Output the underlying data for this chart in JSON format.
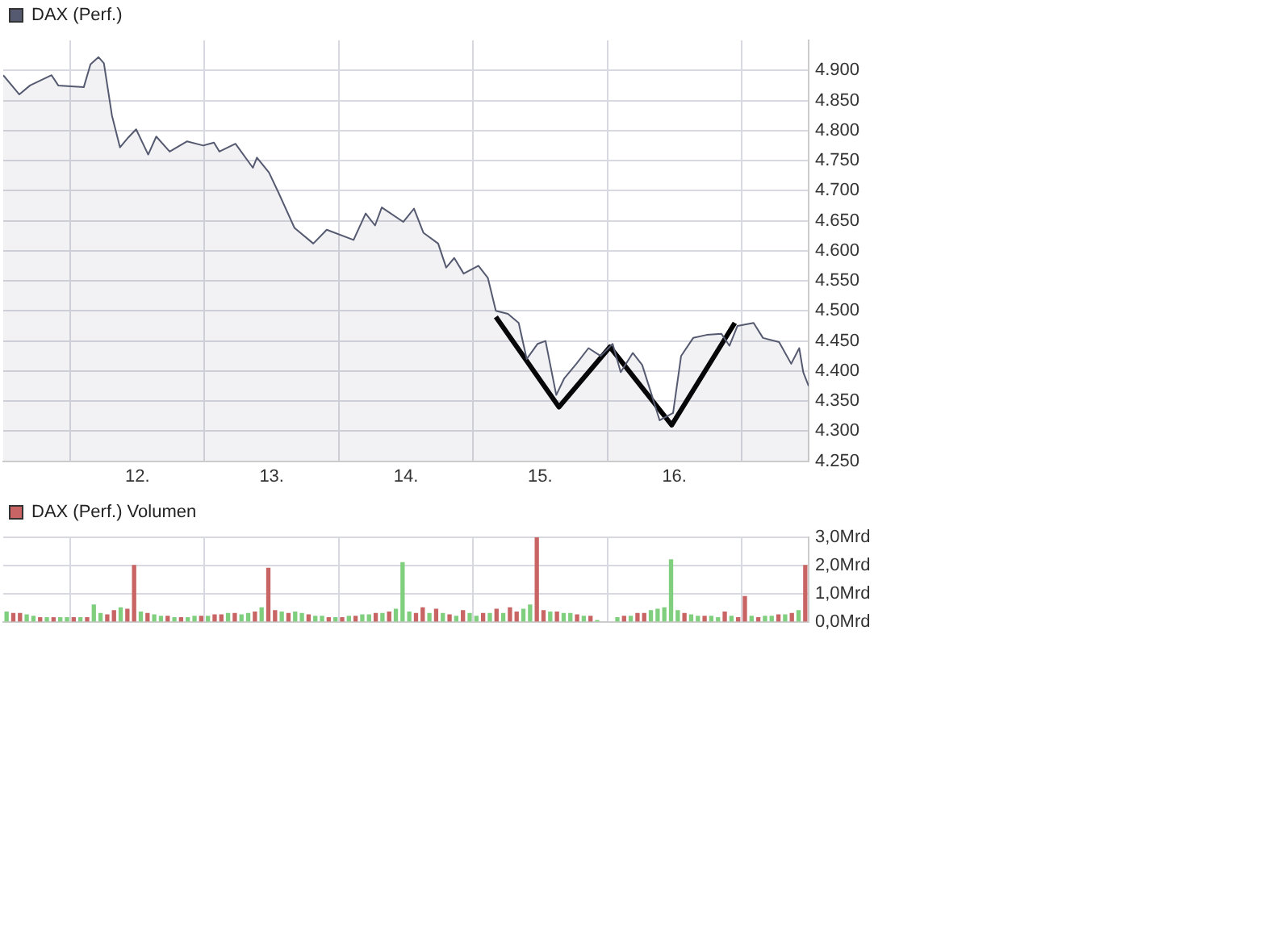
{
  "chart_data": [
    {
      "type": "area",
      "legend": "top left",
      "grid": true,
      "marker": "none",
      "line_style": "solid",
      "xlim": [
        11,
        17
      ],
      "xticks": [
        {
          "value": 12,
          "label": "12."
        },
        {
          "value": 13,
          "label": "13."
        },
        {
          "value": 14,
          "label": "14."
        },
        {
          "value": 15,
          "label": "15."
        },
        {
          "value": 16,
          "label": "16."
        }
      ],
      "ylim": [
        4250,
        4950
      ],
      "yticks": [
        {
          "value": 4250,
          "label": "4.250"
        },
        {
          "value": 4300,
          "label": "4.300"
        },
        {
          "value": 4350,
          "label": "4.350"
        },
        {
          "value": 4400,
          "label": "4.400"
        },
        {
          "value": 4450,
          "label": "4.450"
        },
        {
          "value": 4500,
          "label": "4.500"
        },
        {
          "value": 4550,
          "label": "4.550"
        },
        {
          "value": 4600,
          "label": "4.600"
        },
        {
          "value": 4650,
          "label": "4.650"
        },
        {
          "value": 4700,
          "label": "4.700"
        },
        {
          "value": 4750,
          "label": "4.750"
        },
        {
          "value": 4800,
          "label": "4.800"
        },
        {
          "value": 4850,
          "label": "4.850"
        },
        {
          "value": 4900,
          "label": "4.900"
        }
      ],
      "series": [
        {
          "name": "DAX (Perf.)",
          "color": "#555a70",
          "x": [
            11.0,
            11.12,
            11.2,
            11.36,
            11.41,
            11.6,
            11.65,
            11.71,
            11.75,
            11.81,
            11.87,
            11.93,
            11.99,
            12.08,
            12.14,
            12.24,
            12.37,
            12.49,
            12.57,
            12.61,
            12.73,
            12.86,
            12.89,
            12.98,
            13.05,
            13.17,
            13.31,
            13.41,
            13.61,
            13.7,
            13.77,
            13.82,
            13.98,
            14.06,
            14.13,
            14.24,
            14.3,
            14.36,
            14.43,
            14.54,
            14.61,
            14.67,
            14.76,
            14.84,
            14.9,
            14.98,
            15.04,
            15.12,
            15.18,
            15.27,
            15.36,
            15.45,
            15.54,
            15.6,
            15.69,
            15.76,
            15.82,
            15.89,
            15.99,
            16.05,
            16.14,
            16.24,
            16.35,
            16.41,
            16.47,
            16.59,
            16.66,
            16.78,
            16.87,
            16.93,
            16.96,
            17.0
          ],
          "values": [
            4892,
            4860,
            4875,
            4892,
            4875,
            4872,
            4910,
            4922,
            4912,
            4825,
            4772,
            4788,
            4802,
            4760,
            4790,
            4765,
            4782,
            4775,
            4780,
            4765,
            4778,
            4738,
            4755,
            4730,
            4697,
            4638,
            4612,
            4635,
            4618,
            4662,
            4642,
            4672,
            4648,
            4670,
            4630,
            4612,
            4572,
            4588,
            4562,
            4575,
            4555,
            4500,
            4495,
            4480,
            4420,
            4445,
            4450,
            4360,
            4388,
            4412,
            4438,
            4425,
            4445,
            4398,
            4430,
            4410,
            4368,
            4318,
            4330,
            4425,
            4455,
            4460,
            4462,
            4442,
            4475,
            4480,
            4455,
            4448,
            4412,
            4438,
            4398,
            4375
          ]
        },
        {
          "type": "line",
          "color": "#000000",
          "x": [
            14.67,
            15.14,
            15.52,
            15.98,
            16.45
          ],
          "values": [
            4490,
            4340,
            4440,
            4310,
            4480
          ]
        }
      ]
    },
    {
      "type": "bar",
      "legend": "top left",
      "grid": true,
      "tick_labels": "y",
      "xlim": [
        11,
        17
      ],
      "xticks": [
        {
          "value": 12,
          "label": null
        },
        {
          "value": 13,
          "label": null
        },
        {
          "value": 14,
          "label": null
        },
        {
          "value": 15,
          "label": null
        },
        {
          "value": 16,
          "label": null
        }
      ],
      "ylim": [
        0,
        3
      ],
      "yticks": [
        {
          "value": 0,
          "label": "0,0Mrd"
        },
        {
          "value": 1,
          "label": "1,0Mrd"
        },
        {
          "value": 2,
          "label": "2,0Mrd"
        },
        {
          "value": 3,
          "label": "3,0Mrd"
        }
      ],
      "x": [
        11.025,
        11.075,
        11.125,
        11.175,
        11.225,
        11.275,
        11.325,
        11.375,
        11.425,
        11.475,
        11.525,
        11.575,
        11.625,
        11.675,
        11.725,
        11.775,
        11.825,
        11.875,
        11.925,
        11.975,
        12.025,
        12.075,
        12.125,
        12.175,
        12.225,
        12.275,
        12.325,
        12.375,
        12.425,
        12.475,
        12.525,
        12.575,
        12.625,
        12.675,
        12.725,
        12.775,
        12.825,
        12.875,
        12.925,
        12.975,
        13.025,
        13.075,
        13.125,
        13.175,
        13.225,
        13.275,
        13.325,
        13.375,
        13.425,
        13.475,
        13.525,
        13.575,
        13.625,
        13.675,
        13.725,
        13.775,
        13.825,
        13.875,
        13.925,
        13.975,
        14.025,
        14.075,
        14.125,
        14.175,
        14.225,
        14.275,
        14.325,
        14.375,
        14.425,
        14.475,
        14.525,
        14.575,
        14.625,
        14.675,
        14.725,
        14.775,
        14.825,
        14.875,
        14.925,
        14.975,
        15.025,
        15.075,
        15.125,
        15.175,
        15.225,
        15.275,
        15.325,
        15.375,
        15.425,
        15.475,
        15.525,
        15.575,
        15.625,
        15.675,
        15.725,
        15.775,
        15.825,
        15.875,
        15.925,
        15.975,
        16.025,
        16.075,
        16.125,
        16.175,
        16.225,
        16.275,
        16.325,
        16.375,
        16.425,
        16.475,
        16.525,
        16.575,
        16.625,
        16.675,
        16.725,
        16.775,
        16.825,
        16.875,
        16.925,
        16.975
      ],
      "series": [
        {
          "name": "DAX (Perf.) Volumen",
          "color": "#c86464",
          "values": [
            0.35,
            0.3,
            0.3,
            0.25,
            0.2,
            0.15,
            0.15,
            0.15,
            0.15,
            0.15,
            0.15,
            0.15,
            0.15,
            0.6,
            0.3,
            0.25,
            0.4,
            0.5,
            0.45,
            2.0,
            0.35,
            0.3,
            0.25,
            0.2,
            0.2,
            0.15,
            0.15,
            0.15,
            0.2,
            0.2,
            0.2,
            0.25,
            0.25,
            0.3,
            0.3,
            0.25,
            0.3,
            0.35,
            0.5,
            1.9,
            0.4,
            0.35,
            0.3,
            0.35,
            0.3,
            0.25,
            0.2,
            0.2,
            0.15,
            0.15,
            0.15,
            0.2,
            0.2,
            0.25,
            0.25,
            0.3,
            0.3,
            0.35,
            0.45,
            2.1,
            0.35,
            0.3,
            0.5,
            0.3,
            0.45,
            0.3,
            0.25,
            0.2,
            0.4,
            0.3,
            0.2,
            0.3,
            0.3,
            0.45,
            0.3,
            0.5,
            0.35,
            0.45,
            0.6,
            3.0,
            0.4,
            0.35,
            0.35,
            0.3,
            0.3,
            0.25,
            0.2,
            0.2,
            0.05,
            null,
            null,
            0.15,
            0.2,
            0.2,
            0.3,
            0.3,
            0.4,
            0.45,
            0.5,
            2.2,
            0.4,
            0.3,
            0.25,
            0.2,
            0.2,
            0.2,
            0.15,
            0.35,
            0.2,
            0.15,
            0.9,
            0.2,
            0.15,
            0.2,
            0.2,
            0.25,
            0.25,
            0.3,
            0.4,
            2.0
          ],
          "colors": [
            "#7fcf7f",
            "#c86464",
            "#c86464",
            "#7fcf7f",
            "#7fcf7f",
            "#c86464",
            "#7fcf7f",
            "#c86464",
            "#7fcf7f",
            "#7fcf7f",
            "#c86464",
            "#7fcf7f",
            "#c86464",
            "#7fcf7f",
            "#7fcf7f",
            "#c86464",
            "#c86464",
            "#7fcf7f",
            "#c86464",
            "#c86464",
            "#7fcf7f",
            "#c86464",
            "#7fcf7f",
            "#7fcf7f",
            "#c86464",
            "#7fcf7f",
            "#c86464",
            "#7fcf7f",
            "#7fcf7f",
            "#c86464",
            "#7fcf7f",
            "#c86464",
            "#c86464",
            "#7fcf7f",
            "#c86464",
            "#7fcf7f",
            "#7fcf7f",
            "#c86464",
            "#7fcf7f",
            "#c86464",
            "#c86464",
            "#7fcf7f",
            "#c86464",
            "#7fcf7f",
            "#7fcf7f",
            "#c86464",
            "#7fcf7f",
            "#7fcf7f",
            "#c86464",
            "#7fcf7f",
            "#c86464",
            "#7fcf7f",
            "#c86464",
            "#7fcf7f",
            "#7fcf7f",
            "#c86464",
            "#7fcf7f",
            "#c86464",
            "#7fcf7f",
            "#7fcf7f",
            "#7fcf7f",
            "#c86464",
            "#c86464",
            "#7fcf7f",
            "#c86464",
            "#7fcf7f",
            "#c86464",
            "#7fcf7f",
            "#c86464",
            "#7fcf7f",
            "#7fcf7f",
            "#c86464",
            "#7fcf7f",
            "#c86464",
            "#7fcf7f",
            "#c86464",
            "#c86464",
            "#7fcf7f",
            "#7fcf7f",
            "#c86464",
            "#c86464",
            "#7fcf7f",
            "#c86464",
            "#7fcf7f",
            "#7fcf7f",
            "#c86464",
            "#7fcf7f",
            "#c86464",
            "#7fcf7f",
            "#7fcf7f",
            "#7fcf7f",
            "#7fcf7f",
            "#c86464",
            "#7fcf7f",
            "#c86464",
            "#c86464",
            "#7fcf7f",
            "#7fcf7f",
            "#7fcf7f",
            "#7fcf7f",
            "#7fcf7f",
            "#c86464",
            "#7fcf7f",
            "#7fcf7f",
            "#c86464",
            "#7fcf7f",
            "#7fcf7f",
            "#c86464",
            "#7fcf7f",
            "#c86464",
            "#c86464",
            "#7fcf7f",
            "#c86464",
            "#7fcf7f",
            "#7fcf7f",
            "#c86464",
            "#7fcf7f",
            "#c86464",
            "#7fcf7f",
            "#c86464"
          ]
        }
      ]
    }
  ]
}
